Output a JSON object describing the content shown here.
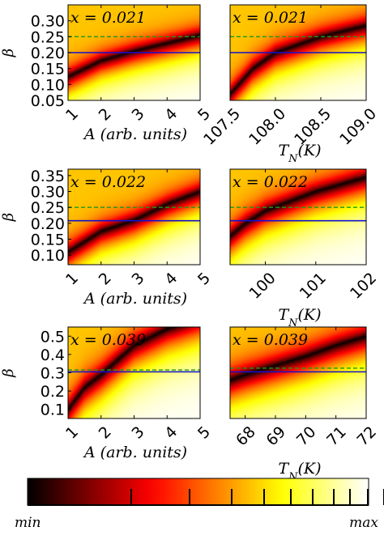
{
  "chart_data": [
    {
      "type": "heatmap",
      "panel": "r1c1",
      "annotation": "x = 0.021",
      "xlabel": "A (arb. units)",
      "ylabel": "β",
      "xlim": [
        1,
        5
      ],
      "ylim": [
        0.05,
        0.35
      ],
      "xticks": [
        "1",
        "2",
        "3",
        "4",
        "5"
      ],
      "yticks": [
        "0.05",
        "0.10",
        "0.15",
        "0.20",
        "0.25",
        "0.30"
      ],
      "valley": {
        "x": [
          1,
          2,
          3,
          4,
          5
        ],
        "y": [
          0.125,
          0.175,
          0.205,
          0.23,
          0.255
        ]
      },
      "blue_line": 0.2,
      "green_dashed": 0.25
    },
    {
      "type": "heatmap",
      "panel": "r1c2",
      "annotation": "x = 0.021",
      "xlabel": "T_N(K)",
      "ylabel": "",
      "xlim": [
        107.5,
        109.0
      ],
      "ylim": [
        0.05,
        0.35
      ],
      "xticks": [
        "107.5",
        "108.0",
        "108.5",
        "109.0"
      ],
      "valley": {
        "x": [
          107.5,
          107.75,
          108.0,
          108.5,
          109.0
        ],
        "y": [
          0.07,
          0.15,
          0.2,
          0.25,
          0.285
        ]
      },
      "blue_line": 0.2,
      "green_dashed": 0.25
    },
    {
      "type": "heatmap",
      "panel": "r2c1",
      "annotation": "x = 0.022",
      "xlabel": "A (arb. units)",
      "ylabel": "β",
      "xlim": [
        1,
        5
      ],
      "ylim": [
        0.07,
        0.37
      ],
      "xticks": [
        "1",
        "2",
        "3",
        "4",
        "5"
      ],
      "yticks": [
        "0.10",
        "0.15",
        "0.20",
        "0.25",
        "0.30",
        "0.35"
      ],
      "valley": {
        "x": [
          1,
          2,
          3,
          4,
          5
        ],
        "y": [
          0.11,
          0.175,
          0.21,
          0.26,
          0.3
        ]
      },
      "blue_line": 0.208,
      "green_dashed": 0.25
    },
    {
      "type": "heatmap",
      "panel": "r2c2",
      "annotation": "x = 0.022",
      "xlabel": "T_N(K)",
      "ylabel": "",
      "xlim": [
        99.3,
        102.0
      ],
      "ylim": [
        0.07,
        0.37
      ],
      "xticks": [
        "100",
        "101",
        "102"
      ],
      "valley": {
        "x": [
          99.3,
          99.6,
          100,
          101,
          102
        ],
        "y": [
          0.16,
          0.2,
          0.24,
          0.3,
          0.345
        ]
      },
      "blue_line": 0.208,
      "green_dashed": 0.25
    },
    {
      "type": "heatmap",
      "panel": "r3c1",
      "annotation": "x = 0.039",
      "xlabel": "A (arb. units)",
      "ylabel": "β",
      "xlim": [
        1,
        5
      ],
      "ylim": [
        0.05,
        0.55
      ],
      "xticks": [
        "1",
        "2",
        "3",
        "4",
        "5"
      ],
      "yticks": [
        "0.1",
        "0.2",
        "0.3",
        "0.4",
        "0.5"
      ],
      "valley": {
        "x": [
          1,
          1.5,
          2,
          2.5,
          3,
          4,
          5
        ],
        "y": [
          0.1,
          0.22,
          0.29,
          0.37,
          0.45,
          0.54,
          0.6
        ]
      },
      "blue_line": 0.305,
      "green_dashed": 0.315
    },
    {
      "type": "heatmap",
      "panel": "r3c2",
      "annotation": "x = 0.039",
      "xlabel": "T_N(K)",
      "ylabel": "",
      "xlim": [
        67.5,
        72.0
      ],
      "ylim": [
        0.05,
        0.55
      ],
      "xticks": [
        "68",
        "69",
        "70",
        "71",
        "72"
      ],
      "valley": {
        "x": [
          67.5,
          68,
          69,
          70,
          71,
          72
        ],
        "y": [
          0.26,
          0.29,
          0.34,
          0.39,
          0.45,
          0.5
        ]
      },
      "blue_line": 0.305,
      "green_dashed": 0.325
    }
  ],
  "colorbar": {
    "min_label": "min",
    "max_label": "max",
    "colormap": "hot"
  }
}
